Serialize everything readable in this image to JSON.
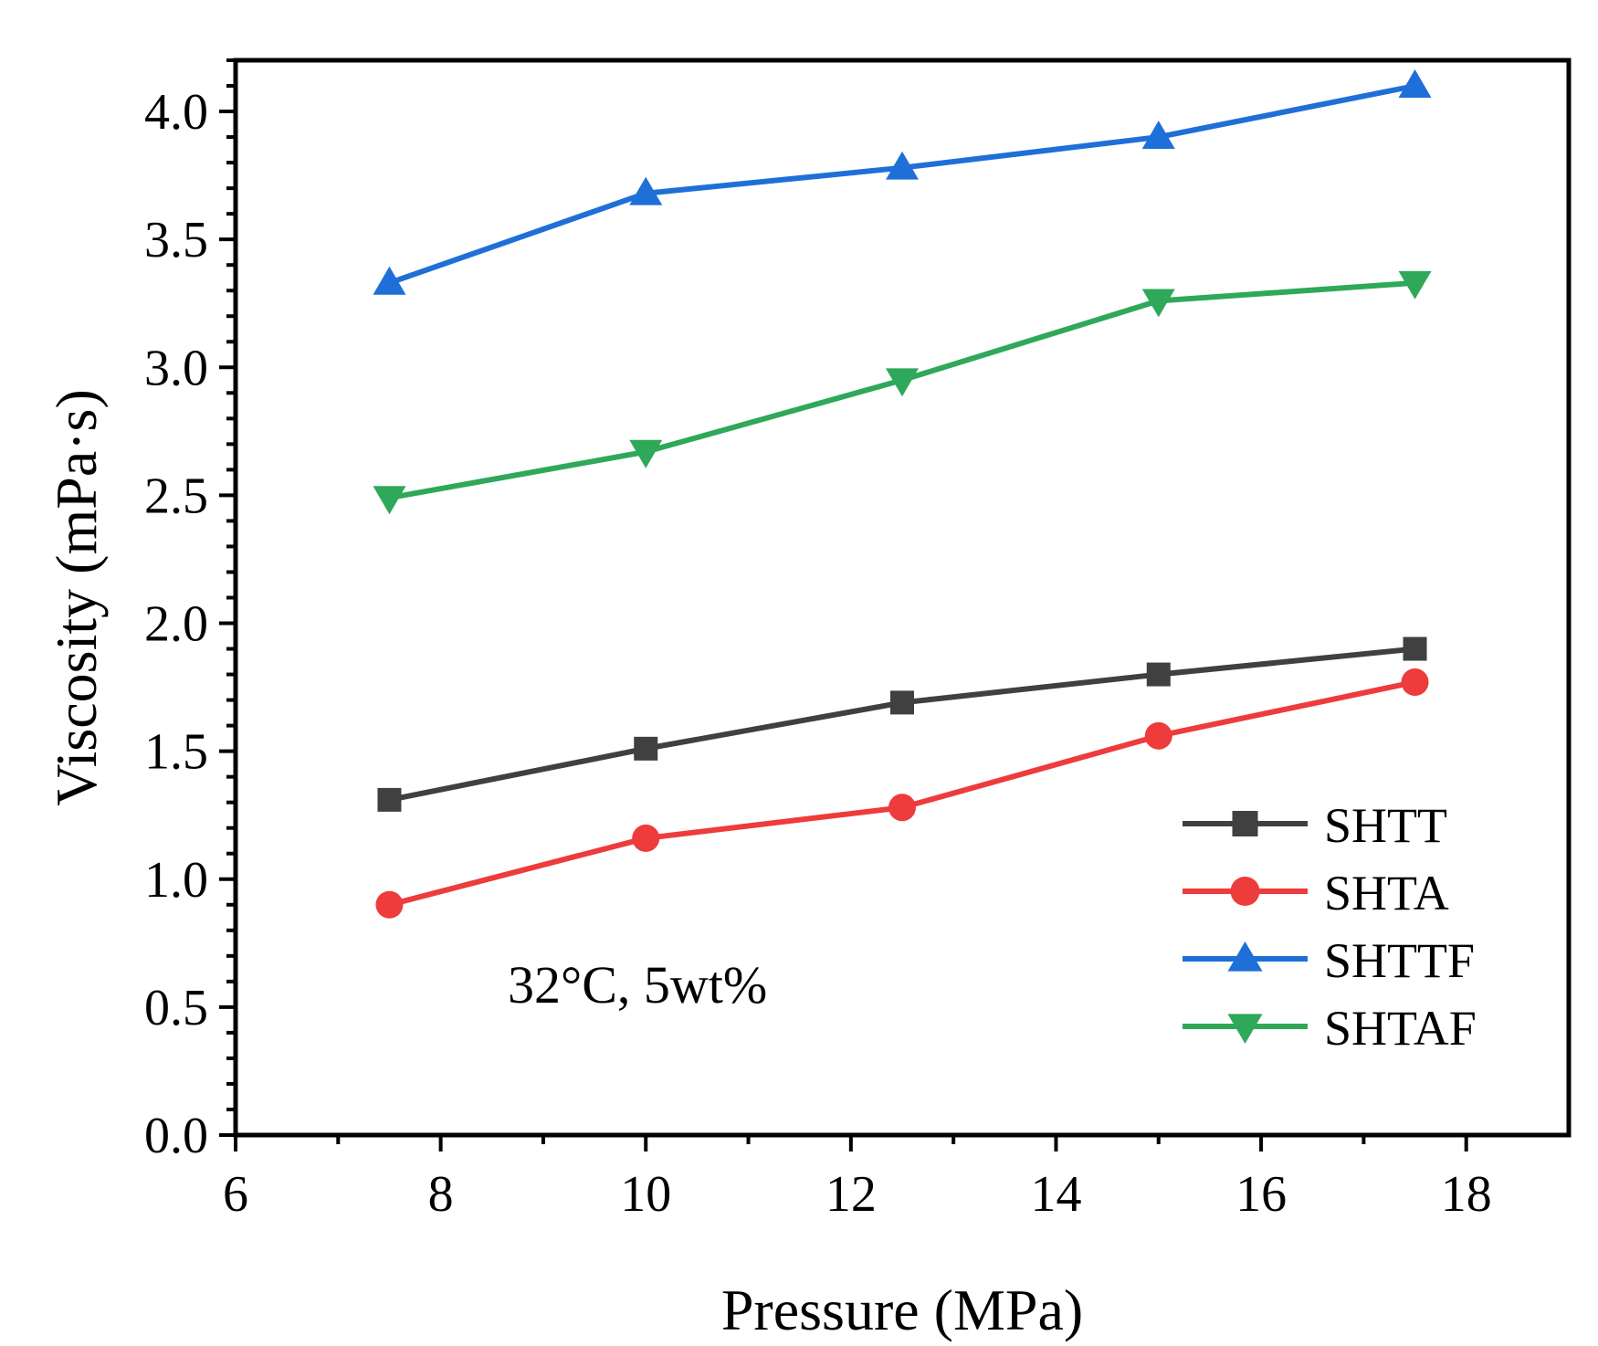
{
  "chart_data": {
    "type": "line",
    "title": "",
    "xlabel": "Pressure (MPa)",
    "ylabel": "Viscosity  (mPa·s)",
    "xlim": [
      6,
      19
    ],
    "ylim": [
      0,
      4.2
    ],
    "xticks": [
      6,
      8,
      10,
      12,
      14,
      16,
      18
    ],
    "xtick_labels": [
      "6",
      "8",
      "10",
      "12",
      "14",
      "16",
      "18"
    ],
    "yticks": [
      0.0,
      0.5,
      1.0,
      1.5,
      2.0,
      2.5,
      3.0,
      3.5,
      4.0
    ],
    "ytick_labels": [
      "0.0",
      "0.5",
      "1.0",
      "1.5",
      "2.0",
      "2.5",
      "3.0",
      "3.5",
      "4.0"
    ],
    "x": [
      7.5,
      10,
      12.5,
      15,
      17.5
    ],
    "series": [
      {
        "name": "SHTT",
        "color": "#404040",
        "marker": "square",
        "values": [
          1.31,
          1.51,
          1.69,
          1.8,
          1.9
        ]
      },
      {
        "name": "SHTA",
        "color": "#ee3b3b",
        "marker": "circle",
        "values": [
          0.9,
          1.16,
          1.28,
          1.56,
          1.77
        ]
      },
      {
        "name": "SHTTF",
        "color": "#1f6fd8",
        "marker": "triangle-up",
        "values": [
          3.33,
          3.68,
          3.78,
          3.9,
          4.1
        ]
      },
      {
        "name": "SHTAF",
        "color": "#2fa85a",
        "marker": "triangle-down",
        "values": [
          2.49,
          2.67,
          2.95,
          3.26,
          3.33
        ]
      }
    ],
    "annotation": "32°C, 5wt%",
    "legend_position": "bottom-right",
    "grid": false
  }
}
